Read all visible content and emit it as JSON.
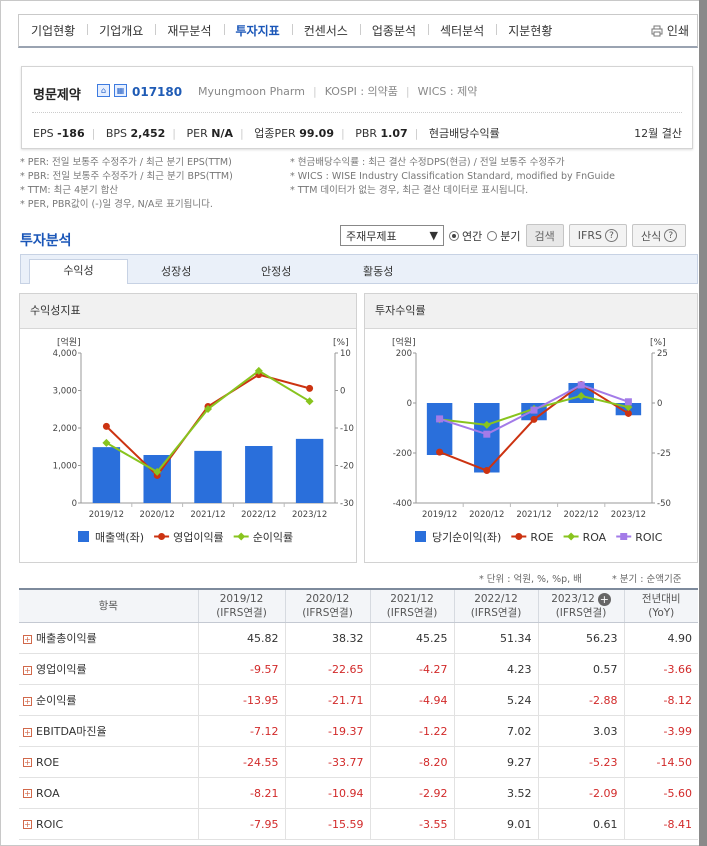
{
  "nav": {
    "tabs": [
      "기업현황",
      "기업개요",
      "재무분석",
      "투자지표",
      "컨센서스",
      "업종분석",
      "섹터분석",
      "지분현황"
    ],
    "active_index": 3,
    "print_label": "인쇄"
  },
  "company": {
    "name": "명문제약",
    "code": "017180",
    "english": "Myungmoon Pharm",
    "market": "KOSPI : 의약품",
    "wics": "WICS : 제약",
    "metrics": [
      {
        "label": "EPS",
        "value": "-186"
      },
      {
        "label": "BPS",
        "value": "2,452"
      },
      {
        "label": "PER",
        "value": "N/A"
      },
      {
        "label": "업종PER",
        "value": "99.09"
      },
      {
        "label": "PBR",
        "value": "1.07"
      },
      {
        "label": "현금배당수익률",
        "value": ""
      }
    ],
    "term": "12월 결산"
  },
  "notes": {
    "left": [
      "* PER: 전일 보통주 수정주가 / 최근 분기 EPS(TTM)",
      "* PBR: 전일 보통주 수정주가 / 최근 분기 BPS(TTM)",
      "* TTM: 최근 4분기 합산",
      "* PER, PBR값이 (-)일 경우, N/A로 표기됩니다."
    ],
    "right": [
      "* 현금배당수익률 : 최근 결산 수정DPS(현금) / 전일 보통주 수정주가",
      "* WICS : WISE Industry Classification Standard, modified by FnGuide",
      "* TTM 데이터가 없는 경우, 최근 결산 데이터로 표시됩니다."
    ]
  },
  "section": {
    "title": "투자분석",
    "select_value": "주재무제표",
    "radio_annual": "연간",
    "radio_quarter": "분기",
    "search_label": "검색",
    "ifrs_label": "IFRS",
    "formula_label": "산식"
  },
  "subtabs": [
    "수익성",
    "성장성",
    "안정성",
    "활동성"
  ],
  "chart_left": {
    "title": "수익성지표",
    "left_unit": "[억원]",
    "right_unit": "[%]",
    "left_ticks": [
      "4,000",
      "3,000",
      "2,000",
      "1,000",
      "0"
    ],
    "right_ticks": [
      "10",
      "0",
      "-10",
      "-20",
      "-30"
    ],
    "legend": [
      "매출액(좌)",
      "영업이익률",
      "순이익률"
    ]
  },
  "chart_right": {
    "title": "투자수익률",
    "left_unit": "[억원]",
    "right_unit": "[%]",
    "left_ticks": [
      "200",
      "0",
      "-200",
      "-400"
    ],
    "right_ticks": [
      "25",
      "0",
      "-25",
      "-50"
    ],
    "legend": [
      "당기순이익(좌)",
      "ROE",
      "ROA",
      "ROIC"
    ]
  },
  "chart_data": [
    {
      "type": "bar",
      "title": "수익성지표",
      "categories": [
        "2019/12",
        "2020/12",
        "2021/12",
        "2022/12",
        "2023/12"
      ],
      "ylim_left": [
        0,
        4000
      ],
      "ylim_right": [
        -30,
        10
      ],
      "series": [
        {
          "name": "매출액(좌)",
          "type": "bar",
          "axis": "left",
          "values": [
            1490,
            1280,
            1390,
            1520,
            1710
          ]
        },
        {
          "name": "영업이익률",
          "type": "line",
          "axis": "right",
          "values": [
            -9.57,
            -22.65,
            -4.27,
            4.23,
            0.57
          ]
        },
        {
          "name": "순이익률",
          "type": "line",
          "axis": "right",
          "values": [
            -13.95,
            -21.71,
            -4.94,
            5.24,
            -2.88
          ]
        }
      ]
    },
    {
      "type": "bar",
      "title": "투자수익률",
      "categories": [
        "2019/12",
        "2020/12",
        "2021/12",
        "2022/12",
        "2023/12"
      ],
      "ylim_left": [
        -400,
        200
      ],
      "ylim_right": [
        -50,
        25
      ],
      "series": [
        {
          "name": "당기순이익(좌)",
          "type": "bar",
          "axis": "left",
          "values": [
            -208,
            -278,
            -69,
            80,
            -49
          ]
        },
        {
          "name": "ROE",
          "type": "line",
          "axis": "right",
          "values": [
            -24.55,
            -33.77,
            -8.2,
            9.27,
            -5.23
          ]
        },
        {
          "name": "ROA",
          "type": "line",
          "axis": "right",
          "values": [
            -8.21,
            -10.94,
            -2.92,
            3.52,
            -2.09
          ]
        },
        {
          "name": "ROIC",
          "type": "line",
          "axis": "right",
          "values": [
            -7.95,
            -15.59,
            -3.55,
            9.01,
            0.61
          ]
        }
      ]
    },
    {
      "type": "table",
      "columns": [
        "항목",
        "2019/12 (IFRS연결)",
        "2020/12 (IFRS연결)",
        "2021/12 (IFRS연결)",
        "2022/12 (IFRS연결)",
        "2023/12 (IFRS연결)",
        "전년대비 (YoY)"
      ],
      "rows": [
        [
          "매출총이익률",
          "45.82",
          "38.32",
          "45.25",
          "51.34",
          "56.23",
          "4.90"
        ],
        [
          "영업이익률",
          "-9.57",
          "-22.65",
          "-4.27",
          "4.23",
          "0.57",
          "-3.66"
        ],
        [
          "순이익률",
          "-13.95",
          "-21.71",
          "-4.94",
          "5.24",
          "-2.88",
          "-8.12"
        ],
        [
          "EBITDA마진율",
          "-7.12",
          "-19.37",
          "-1.22",
          "7.02",
          "3.03",
          "-3.99"
        ],
        [
          "ROE",
          "-24.55",
          "-33.77",
          "-8.20",
          "9.27",
          "-5.23",
          "-14.50"
        ],
        [
          "ROA",
          "-8.21",
          "-10.94",
          "-2.92",
          "3.52",
          "-2.09",
          "-5.60"
        ],
        [
          "ROIC",
          "-7.95",
          "-15.59",
          "-3.55",
          "9.01",
          "0.61",
          "-8.41"
        ]
      ]
    }
  ],
  "table": {
    "unit_note": "* 단위 : 억원, %, %p, 배",
    "quarter_note": "* 분기 : 순액기준",
    "header": [
      {
        "line1": "항목",
        "line2": ""
      },
      {
        "line1": "2019/12",
        "line2": "(IFRS연결)"
      },
      {
        "line1": "2020/12",
        "line2": "(IFRS연결)"
      },
      {
        "line1": "2021/12",
        "line2": "(IFRS연결)"
      },
      {
        "line1": "2022/12",
        "line2": "(IFRS연결)"
      },
      {
        "line1": "2023/12",
        "line2": "(IFRS연결)"
      },
      {
        "line1": "전년대비",
        "line2": "(YoY)"
      }
    ]
  },
  "colors": {
    "bar": "#2a6fdb",
    "line_red": "#cc3311",
    "line_green": "#88c41e",
    "line_purple": "#a37be8",
    "accent": "#1a56b8"
  }
}
